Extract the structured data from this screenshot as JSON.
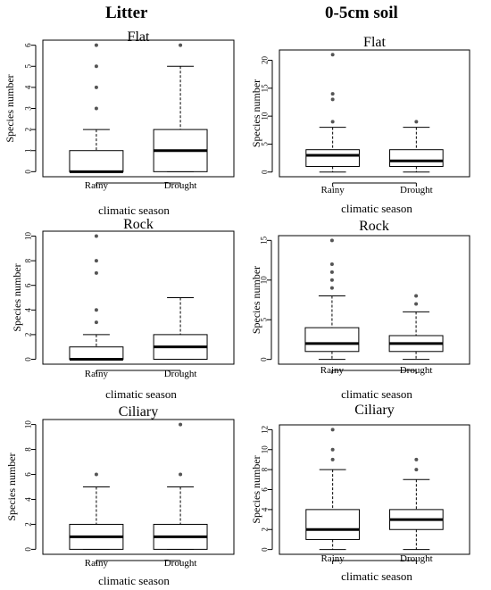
{
  "headers": {
    "left": "Litter",
    "right": "0-5cm soil"
  },
  "chart_data": [
    {
      "type": "box",
      "title": "Flat",
      "column": "Litter",
      "ylabel": "Species number",
      "xlabel": "climatic  season",
      "categories": [
        "Rainy",
        "Drought"
      ],
      "ylim": [
        0,
        6
      ],
      "yticks": [
        0,
        1,
        2,
        3,
        4,
        5,
        6
      ],
      "boxes": [
        {
          "min": 0,
          "q1": 0,
          "median": 0,
          "q3": 1,
          "max": 2,
          "outliers": [
            3,
            4,
            5,
            6
          ]
        },
        {
          "min": 0,
          "q1": 0,
          "median": 1,
          "q3": 2,
          "max": 5,
          "outliers": [
            6
          ]
        }
      ]
    },
    {
      "type": "box",
      "title": "Flat",
      "column": "0-5cm soil",
      "ylabel": "Species number",
      "xlabel": "climatic  season",
      "categories": [
        "Rainy",
        "Drought"
      ],
      "ylim": [
        0,
        21
      ],
      "yticks": [
        0,
        5,
        10,
        15,
        20
      ],
      "boxes": [
        {
          "min": 0,
          "q1": 1,
          "median": 3,
          "q3": 4,
          "max": 8,
          "outliers": [
            9,
            13,
            14,
            21
          ]
        },
        {
          "min": 0,
          "q1": 1,
          "median": 2,
          "q3": 4,
          "max": 8,
          "outliers": [
            9
          ]
        }
      ]
    },
    {
      "type": "box",
      "title": "Rock",
      "column": "Litter",
      "ylabel": "Species number",
      "xlabel": "climatic  season",
      "categories": [
        "Rainy",
        "Drought"
      ],
      "ylim": [
        0,
        10
      ],
      "yticks": [
        0,
        2,
        4,
        6,
        8,
        10
      ],
      "boxes": [
        {
          "min": 0,
          "q1": 0,
          "median": 0,
          "q3": 1,
          "max": 2,
          "outliers": [
            3,
            4,
            7,
            8,
            10
          ]
        },
        {
          "min": 0,
          "q1": 0,
          "median": 1,
          "q3": 2,
          "max": 5,
          "outliers": []
        }
      ]
    },
    {
      "type": "box",
      "title": "Rock",
      "column": "0-5cm soil",
      "ylabel": "Species number",
      "xlabel": "climatic  season",
      "categories": [
        "Rainy",
        "Drought"
      ],
      "ylim": [
        0,
        15
      ],
      "yticks": [
        0,
        5,
        10,
        15
      ],
      "boxes": [
        {
          "min": 0,
          "q1": 1,
          "median": 2,
          "q3": 4,
          "max": 8,
          "outliers": [
            9,
            10,
            11,
            12,
            15
          ]
        },
        {
          "min": 0,
          "q1": 1,
          "median": 2,
          "q3": 3,
          "max": 6,
          "outliers": [
            7,
            8
          ]
        }
      ]
    },
    {
      "type": "box",
      "title": "Ciliary",
      "column": "Litter",
      "ylabel": "Species number",
      "xlabel": "climatic  season",
      "categories": [
        "Rainy",
        "Drought"
      ],
      "ylim": [
        0,
        10
      ],
      "yticks": [
        0,
        2,
        4,
        6,
        8,
        10
      ],
      "boxes": [
        {
          "min": 0,
          "q1": 0,
          "median": 1,
          "q3": 2,
          "max": 5,
          "outliers": [
            6
          ]
        },
        {
          "min": 0,
          "q1": 0,
          "median": 1,
          "q3": 2,
          "max": 5,
          "outliers": [
            6,
            10
          ]
        }
      ]
    },
    {
      "type": "box",
      "title": "Ciliary",
      "column": "0-5cm soil",
      "ylabel": "Species number",
      "xlabel": "climatic  season",
      "categories": [
        "Rainy",
        "Drought"
      ],
      "ylim": [
        0,
        12
      ],
      "yticks": [
        0,
        2,
        4,
        6,
        8,
        10,
        12
      ],
      "boxes": [
        {
          "min": 0,
          "q1": 1,
          "median": 2,
          "q3": 4,
          "max": 8,
          "outliers": [
            9,
            10,
            12
          ]
        },
        {
          "min": 0,
          "q1": 2,
          "median": 3,
          "q3": 4,
          "max": 7,
          "outliers": [
            8,
            9
          ]
        }
      ]
    }
  ]
}
